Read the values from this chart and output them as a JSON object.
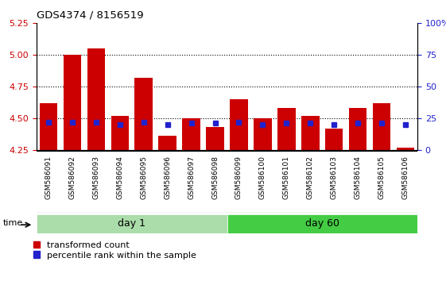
{
  "title": "GDS4374 / 8156519",
  "samples": [
    "GSM586091",
    "GSM586092",
    "GSM586093",
    "GSM586094",
    "GSM586095",
    "GSM586096",
    "GSM586097",
    "GSM586098",
    "GSM586099",
    "GSM586100",
    "GSM586101",
    "GSM586102",
    "GSM586103",
    "GSM586104",
    "GSM586105",
    "GSM586106"
  ],
  "red_values": [
    4.62,
    5.0,
    5.05,
    4.52,
    4.82,
    4.36,
    4.5,
    4.43,
    4.65,
    4.5,
    4.58,
    4.52,
    4.42,
    4.58,
    4.62,
    4.27
  ],
  "blue_values": [
    22,
    22,
    22,
    20,
    22,
    20,
    21,
    21,
    22,
    20,
    21,
    21,
    20,
    21,
    21,
    20
  ],
  "groups": [
    {
      "label": "day 1",
      "start": 0,
      "end": 7
    },
    {
      "label": "day 60",
      "start": 8,
      "end": 15
    }
  ],
  "ylim": [
    4.25,
    5.25
  ],
  "ylim_right": [
    0,
    100
  ],
  "yticks_left": [
    4.25,
    4.5,
    4.75,
    5.0,
    5.25
  ],
  "yticks_right": [
    0,
    25,
    50,
    75,
    100
  ],
  "bar_color": "#cc0000",
  "blue_color": "#2222cc",
  "group_color_day1": "#aaddaa",
  "group_color_day60": "#44cc44",
  "xtick_bg_color": "#c8c8c8",
  "ylabel_left_color": "#cc0000",
  "ylabel_right_color": "#2222cc",
  "bar_bottom": 4.25,
  "n_day1": 8,
  "n_day2": 8
}
